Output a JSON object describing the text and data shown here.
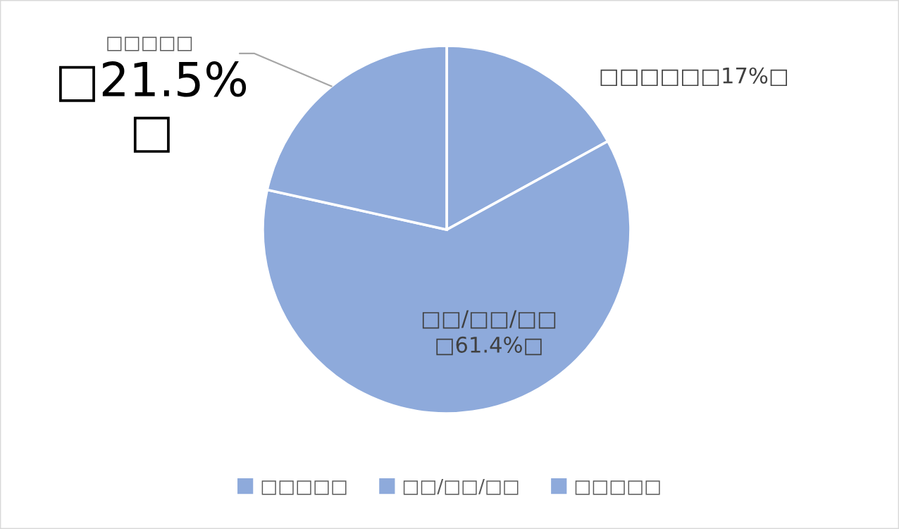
{
  "chart_data": {
    "type": "pie",
    "categories": [
      "□□□□□",
      "□□/□□/□□",
      "□□□□□"
    ],
    "values": [
      17,
      61.4,
      21.5
    ],
    "colors": [
      "#8eaadb",
      "#8eaadb",
      "#8eaadb"
    ],
    "value_labels": [
      "□□□□□□17%□",
      "□□/□□/□□\n□61.4%□",
      "□□□□□\n□21.5%\n□"
    ],
    "legend": "bottom"
  }
}
